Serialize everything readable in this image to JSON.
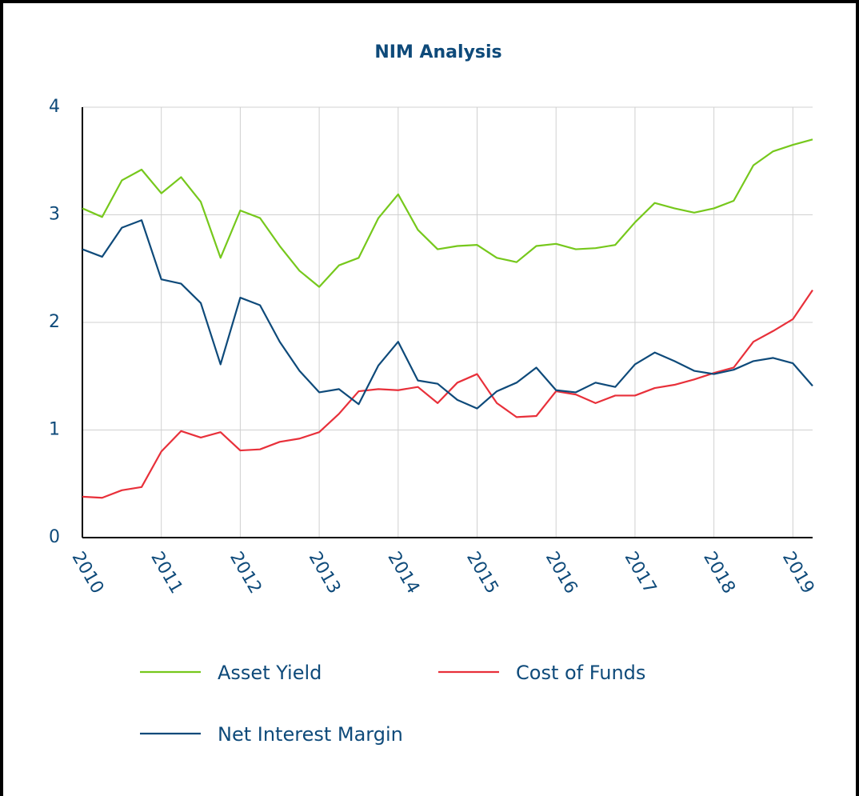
{
  "chart_data": {
    "type": "line",
    "title": "NIM Analysis",
    "x": [
      2010,
      2010.25,
      2010.5,
      2010.75,
      2011,
      2011.25,
      2011.5,
      2011.75,
      2012,
      2012.25,
      2012.5,
      2012.75,
      2013,
      2013.25,
      2013.5,
      2013.75,
      2014,
      2014.25,
      2014.5,
      2014.75,
      2015,
      2015.25,
      2015.5,
      2015.75,
      2016,
      2016.25,
      2016.5,
      2016.75,
      2017,
      2017.25,
      2017.5,
      2017.75,
      2018,
      2018.25,
      2018.5,
      2018.75,
      2019,
      2019.25
    ],
    "series": [
      {
        "name": "Asset Yield",
        "color": "#76c81c",
        "values": [
          3.06,
          2.98,
          3.32,
          3.42,
          3.2,
          3.35,
          3.12,
          2.6,
          3.04,
          2.97,
          2.71,
          2.48,
          2.33,
          2.53,
          2.6,
          2.97,
          3.19,
          2.86,
          2.68,
          2.71,
          2.72,
          2.6,
          2.56,
          2.71,
          2.73,
          2.68,
          2.69,
          2.72,
          2.93,
          3.11,
          3.06,
          3.02,
          3.06,
          3.13,
          3.46,
          3.59,
          3.65,
          3.7
        ]
      },
      {
        "name": "Cost of Funds",
        "color": "#e8303a",
        "values": [
          0.38,
          0.37,
          0.44,
          0.47,
          0.8,
          0.99,
          0.93,
          0.98,
          0.81,
          0.82,
          0.89,
          0.92,
          0.98,
          1.15,
          1.36,
          1.38,
          1.37,
          1.4,
          1.25,
          1.44,
          1.52,
          1.25,
          1.12,
          1.13,
          1.36,
          1.33,
          1.25,
          1.32,
          1.32,
          1.39,
          1.42,
          1.47,
          1.53,
          1.58,
          1.82,
          1.92,
          2.03,
          2.3
        ]
      },
      {
        "name": "Net Interest Margin",
        "color": "#0e4a7a",
        "values": [
          2.68,
          2.61,
          2.88,
          2.95,
          2.4,
          2.36,
          2.18,
          1.61,
          2.23,
          2.16,
          1.82,
          1.55,
          1.35,
          1.38,
          1.24,
          1.6,
          1.82,
          1.46,
          1.43,
          1.28,
          1.2,
          1.36,
          1.44,
          1.58,
          1.37,
          1.35,
          1.44,
          1.4,
          1.61,
          1.72,
          1.64,
          1.55,
          1.52,
          1.56,
          1.64,
          1.67,
          1.62,
          1.41
        ]
      }
    ],
    "xlim": [
      2010,
      2019.25
    ],
    "xticks": [
      2010,
      2011,
      2012,
      2013,
      2014,
      2015,
      2016,
      2017,
      2018,
      2019
    ],
    "ylim": [
      0,
      4
    ],
    "yticks": [
      0,
      1,
      2,
      3,
      4
    ],
    "grid": true
  }
}
